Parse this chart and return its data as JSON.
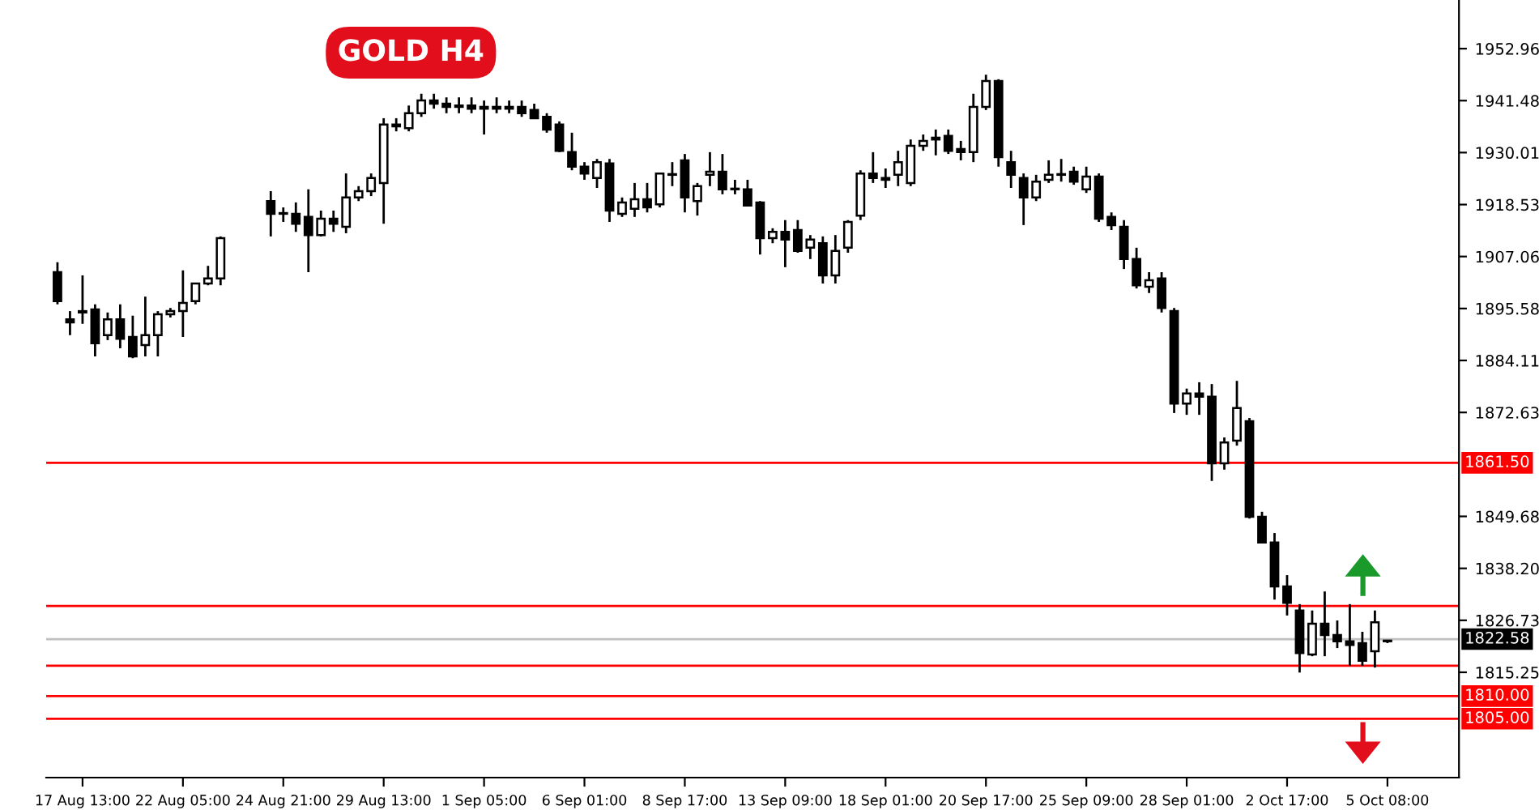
{
  "chart_data": {
    "type": "candlestick",
    "title": "GOLD H4",
    "categories": [
      null,
      null,
      "17 Aug 13:00",
      null,
      null,
      null,
      null,
      null,
      null,
      null,
      "22 Aug 05:00",
      null,
      null,
      null,
      null,
      null,
      null,
      null,
      "24 Aug 21:00",
      null,
      null,
      null,
      null,
      null,
      null,
      null,
      "29 Aug 13:00",
      null,
      null,
      null,
      null,
      null,
      null,
      null,
      "1 Sep 05:00",
      null,
      null,
      null,
      null,
      null,
      null,
      null,
      "6 Sep 01:00",
      null,
      null,
      null,
      null,
      null,
      null,
      null,
      "8 Sep 17:00",
      null,
      null,
      null,
      null,
      null,
      null,
      null,
      "13 Sep 09:00",
      null,
      null,
      null,
      null,
      null,
      null,
      null,
      "18 Sep 01:00",
      null,
      null,
      null,
      null,
      null,
      null,
      null,
      "20 Sep 17:00",
      null,
      null,
      null,
      null,
      null,
      null,
      null,
      "25 Sep 09:00",
      null,
      null,
      null,
      null,
      null,
      null,
      null,
      "28 Sep 01:00",
      null,
      null,
      null,
      null,
      null,
      null,
      null,
      "2 Oct 17:00",
      null,
      null,
      null,
      null,
      null,
      null,
      null,
      "5 Oct 08:00"
    ],
    "ohlc": [
      [
        1903.6,
        1905.8,
        1896.5,
        1897.2
      ],
      [
        1893.2,
        1895.0,
        1889.7,
        1892.5
      ],
      [
        1894.7,
        1902.9,
        1892.2,
        1895.0
      ],
      [
        1895.4,
        1896.5,
        1885.0,
        1887.9
      ],
      [
        1889.7,
        1894.7,
        1888.6,
        1893.2
      ],
      [
        1893.2,
        1896.5,
        1886.8,
        1888.9
      ],
      [
        1889.3,
        1894.0,
        1884.6,
        1885.0
      ],
      [
        1887.5,
        1898.2,
        1885.0,
        1889.7
      ],
      [
        1889.7,
        1895.0,
        1885.0,
        1894.3
      ],
      [
        1894.3,
        1895.7,
        1893.6,
        1895.0
      ],
      [
        1895.0,
        1904.0,
        1889.3,
        1896.8
      ],
      [
        1897.2,
        1901.1,
        1896.5,
        1901.1
      ],
      [
        1901.1,
        1905.0,
        1900.7,
        1902.2
      ],
      [
        1902.2,
        1911.5,
        1900.7,
        1911.1
      ],
      null,
      null,
      null,
      [
        1919.3,
        1921.5,
        1911.5,
        1916.5
      ],
      [
        1916.5,
        1917.9,
        1914.7,
        1916.5
      ],
      [
        1916.5,
        1919.0,
        1912.5,
        1914.3
      ],
      [
        1915.8,
        1921.9,
        1903.6,
        1911.8
      ],
      [
        1911.8,
        1917.2,
        1911.5,
        1915.4
      ],
      [
        1915.4,
        1917.2,
        1912.5,
        1914.3
      ],
      [
        1913.6,
        1925.4,
        1912.2,
        1920.1
      ],
      [
        1920.1,
        1922.6,
        1919.3,
        1921.5
      ],
      [
        1921.5,
        1925.4,
        1920.4,
        1924.4
      ],
      [
        1923.3,
        1937.6,
        1914.3,
        1936.2
      ],
      [
        1936.2,
        1937.6,
        1934.7,
        1935.8
      ],
      [
        1935.4,
        1940.4,
        1934.7,
        1938.7
      ],
      [
        1938.7,
        1943.0,
        1937.9,
        1941.5
      ],
      [
        1941.5,
        1943.0,
        1939.7,
        1940.8
      ],
      [
        1940.8,
        1942.2,
        1938.7,
        1940.1
      ],
      [
        1940.1,
        1942.2,
        1938.7,
        1940.4
      ],
      [
        1940.4,
        1942.2,
        1938.7,
        1939.7
      ],
      [
        1939.7,
        1941.5,
        1934.0,
        1940.1
      ],
      [
        1940.1,
        1942.2,
        1938.7,
        1939.7
      ],
      [
        1939.7,
        1941.5,
        1938.7,
        1940.1
      ],
      [
        1940.1,
        1941.5,
        1937.9,
        1938.7
      ],
      [
        1939.4,
        1940.8,
        1937.6,
        1937.6
      ],
      [
        1937.9,
        1938.7,
        1934.4,
        1935.1
      ],
      [
        1936.2,
        1936.9,
        1930.1,
        1930.4
      ],
      [
        1930.1,
        1934.4,
        1926.1,
        1926.9
      ],
      [
        1926.9,
        1927.9,
        1924.0,
        1925.4
      ],
      [
        1924.4,
        1928.6,
        1922.2,
        1927.9
      ],
      [
        1927.6,
        1928.6,
        1914.7,
        1917.2
      ],
      [
        1916.5,
        1920.1,
        1915.8,
        1919.0
      ],
      [
        1917.6,
        1923.3,
        1915.8,
        1919.7
      ],
      [
        1919.7,
        1923.3,
        1916.8,
        1917.9
      ],
      [
        1918.6,
        1925.4,
        1917.9,
        1925.4
      ],
      [
        1925.1,
        1927.9,
        1922.6,
        1925.1
      ],
      [
        1928.3,
        1929.7,
        1916.8,
        1920.1
      ],
      [
        1919.3,
        1923.3,
        1916.1,
        1922.6
      ],
      [
        1925.1,
        1930.1,
        1922.6,
        1925.8
      ],
      [
        1925.8,
        1929.7,
        1920.8,
        1921.9
      ],
      [
        1921.9,
        1924.0,
        1920.8,
        1921.9
      ],
      [
        1921.9,
        1924.0,
        1918.3,
        1918.3
      ],
      [
        1919.0,
        1919.3,
        1907.5,
        1911.1
      ],
      [
        1911.1,
        1913.3,
        1910.0,
        1912.5
      ],
      [
        1912.5,
        1915.1,
        1904.7,
        1910.8
      ],
      [
        1912.9,
        1915.1,
        1907.9,
        1908.3
      ],
      [
        1909.0,
        1911.8,
        1906.5,
        1910.8
      ],
      [
        1910.0,
        1911.5,
        1901.1,
        1902.9
      ],
      [
        1902.9,
        1911.8,
        1901.1,
        1908.3
      ],
      [
        1909.0,
        1915.1,
        1907.9,
        1914.7
      ],
      [
        1916.1,
        1926.1,
        1915.1,
        1925.4
      ],
      [
        1925.4,
        1930.1,
        1923.3,
        1924.4
      ],
      [
        1924.0,
        1926.5,
        1922.2,
        1924.4
      ],
      [
        1925.1,
        1930.4,
        1922.6,
        1927.9
      ],
      [
        1923.3,
        1932.9,
        1922.6,
        1931.5
      ],
      [
        1931.5,
        1934.0,
        1930.4,
        1932.6
      ],
      [
        1932.9,
        1935.1,
        1929.4,
        1933.3
      ],
      [
        1933.7,
        1935.1,
        1929.7,
        1930.4
      ],
      [
        1930.8,
        1932.6,
        1928.3,
        1930.1
      ],
      [
        1930.1,
        1943.0,
        1927.9,
        1940.1
      ],
      [
        1940.1,
        1947.2,
        1939.4,
        1945.8
      ],
      [
        1945.8,
        1946.2,
        1926.9,
        1929.0
      ],
      [
        1927.9,
        1930.4,
        1922.2,
        1925.1
      ],
      [
        1924.4,
        1925.4,
        1914.0,
        1920.1
      ],
      [
        1920.1,
        1925.1,
        1919.3,
        1923.6
      ],
      [
        1924.0,
        1928.3,
        1923.3,
        1925.1
      ],
      [
        1925.1,
        1928.6,
        1923.6,
        1925.1
      ],
      [
        1925.8,
        1926.9,
        1922.9,
        1923.6
      ],
      [
        1921.9,
        1926.9,
        1921.1,
        1924.7
      ],
      [
        1924.7,
        1925.4,
        1914.7,
        1915.4
      ],
      [
        1915.8,
        1916.8,
        1912.9,
        1914.0
      ],
      [
        1913.6,
        1915.1,
        1904.3,
        1906.5
      ],
      [
        1906.5,
        1909.0,
        1900.0,
        1900.7
      ],
      [
        1900.4,
        1903.6,
        1899.0,
        1901.8
      ],
      [
        1902.2,
        1903.6,
        1894.7,
        1895.7
      ],
      [
        1895.0,
        1895.7,
        1872.5,
        1874.6
      ],
      [
        1874.6,
        1877.9,
        1872.1,
        1876.8
      ],
      [
        1876.8,
        1879.3,
        1872.1,
        1876.1
      ],
      [
        1876.1,
        1878.9,
        1857.5,
        1861.4
      ],
      [
        1861.4,
        1867.1,
        1860.0,
        1866.0
      ],
      [
        1866.4,
        1879.6,
        1865.3,
        1873.6
      ],
      [
        1870.7,
        1871.4,
        1849.2,
        1849.6
      ],
      [
        1849.6,
        1850.7,
        1843.9,
        1843.9
      ],
      [
        1843.9,
        1846.0,
        1831.3,
        1834.2
      ],
      [
        1834.2,
        1836.7,
        1827.8,
        1830.6
      ],
      [
        1828.9,
        1830.3,
        1815.2,
        1819.5
      ],
      [
        1819.2,
        1828.9,
        1818.8,
        1826.0
      ],
      [
        1826.0,
        1833.1,
        1818.8,
        1823.5
      ],
      [
        1823.5,
        1826.7,
        1820.6,
        1822.1
      ],
      [
        1822.1,
        1830.3,
        1816.7,
        1821.3
      ],
      [
        1821.7,
        1824.2,
        1816.7,
        1817.8
      ],
      [
        1819.9,
        1828.9,
        1816.3,
        1826.3
      ],
      [
        1822.1,
        1822.4,
        1821.7,
        1822.1
      ]
    ],
    "ylim": [
      1792.0,
      1963.7
    ],
    "yticks": [
      1952.96,
      1941.48,
      1930.01,
      1918.53,
      1907.06,
      1895.58,
      1884.11,
      1872.63,
      1849.68,
      {
        "value": 1838.2,
        "label": "1838.20"
      },
      1826.73,
      1815.25
    ],
    "ref_lines": [
      {
        "axis": "y",
        "value": 1861.5,
        "label": "1861.50",
        "color": "#ff0000"
      },
      {
        "axis": "y",
        "value": 1822.58,
        "label": "1822.58",
        "color": "#c0c0c0"
      },
      {
        "axis": "y",
        "value": 1810.0,
        "label": "1810.00",
        "color": "#ff0000"
      },
      {
        "axis": "y",
        "value": 1805.0,
        "label": "1805.00",
        "color": "#ff0000"
      },
      {
        "axis": "y",
        "value": 1829.9,
        "color": "#ff0000"
      },
      {
        "axis": "y",
        "value": 1816.7,
        "color": "#ff0000"
      }
    ]
  }
}
